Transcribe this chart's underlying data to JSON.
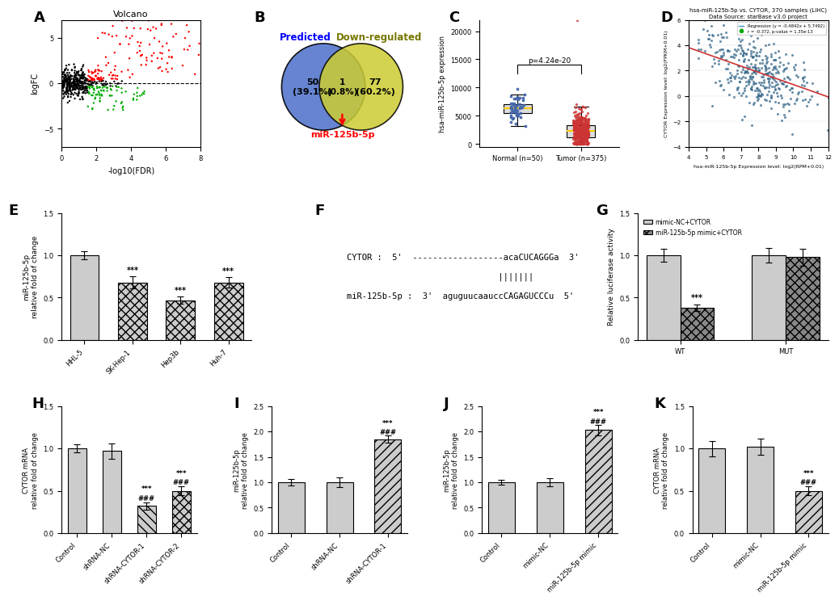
{
  "panel_A": {
    "title": "Volcano",
    "xlabel": "-log10(FDR)",
    "ylabel": "logFC",
    "xlim": [
      0,
      8
    ],
    "ylim": [
      -7,
      7
    ],
    "xticks": [
      0,
      2,
      4,
      6,
      8
    ],
    "yticks": [
      -5,
      0,
      5
    ]
  },
  "panel_B": {
    "left_label": "Predicted",
    "right_label": "Down-regulated",
    "left_only": "50\n(39.1%)",
    "intersection": "1\n(0.8%)",
    "right_only": "77\n(60.2%)",
    "arrow_label": "miR-125b-5p",
    "left_color": "#5577cc",
    "right_color": "#cccc33",
    "left_text_color": "#0000ff",
    "right_text_color": "#777700"
  },
  "panel_C": {
    "ylabel": "hsa-miR-125b-5p expression",
    "normal_label": "Normal (n=50)",
    "tumor_label": "Tumor (n=375)",
    "normal_color": "#4466aa",
    "tumor_color": "#cc3333"
  },
  "panel_D": {
    "title": "hsa-miR-125b-5p vs. CYTOR, 370 samples (LIHC)",
    "subtitle": "Data Source: starBase v3.0 project",
    "legend1": "Regression (y = -0.4842x + 5.7492)",
    "legend2": "r = -0.372, p-value = 1.35e-13",
    "xlabel": "hsa-miR-125b-5p Expression level: log2(RPM+0.01)",
    "ylabel": "CYTOR Expression level: log2(FPKM+0.01)",
    "xlim": [
      4,
      12
    ],
    "ylim": [
      -4,
      6
    ],
    "dot_color": "#336688",
    "line_color": "#cc3333",
    "legend_line_color": "#4499cc",
    "legend_dot_color": "#00aa00"
  },
  "panel_E": {
    "ylabel": "miR-125b-5p\nrelative fold of change",
    "categories": [
      "HHL-5",
      "SK-Hep-1",
      "Hep3b",
      "Huh-7"
    ],
    "values": [
      1.0,
      0.68,
      0.47,
      0.68
    ],
    "errors": [
      0.05,
      0.07,
      0.04,
      0.06
    ],
    "sig": [
      "",
      "***",
      "***",
      "***"
    ],
    "ylim": [
      0,
      1.5
    ],
    "yticks": [
      0.0,
      0.5,
      1.0,
      1.5
    ],
    "hatch_patterns": [
      "===",
      "xxx",
      "xxx",
      "xxx"
    ]
  },
  "panel_F": {
    "cytor_line": "CYTOR :  5'  ------------------acaCUCAGGGa  3'",
    "bars": "                              |||||||",
    "mir_line": "miR-125b-5p :  3'  aguguucaauccCAGAGUCCCu  5'"
  },
  "panel_G": {
    "ylabel": "Relative luciferase activity",
    "categories": [
      "WT",
      "MUT"
    ],
    "legend_labels": [
      "mimic-NC+CYTOR",
      "miR-125b-5p mimic+CYTOR"
    ],
    "values_nc": [
      1.0,
      1.0
    ],
    "values_mir": [
      0.38,
      0.98
    ],
    "errors_nc": [
      0.08,
      0.09
    ],
    "errors_mir": [
      0.04,
      0.1
    ],
    "sig_mir": [
      "***",
      ""
    ],
    "ylim": [
      0,
      1.5
    ],
    "yticks": [
      0.0,
      0.5,
      1.0,
      1.5
    ],
    "hatch_nc": "===",
    "hatch_mir": "xxx"
  },
  "panel_H": {
    "ylabel": "CYTOR mRNA\nrelative fold of change",
    "categories": [
      "Control",
      "shRNA-NC",
      "shRNA-CYTOR-1",
      "shRNA-CYTOR-2"
    ],
    "values": [
      1.0,
      0.97,
      0.32,
      0.5
    ],
    "errors": [
      0.05,
      0.09,
      0.04,
      0.05
    ],
    "sig_star": [
      "",
      "",
      "***",
      "***"
    ],
    "sig_hash": [
      "",
      "",
      "###",
      "###"
    ],
    "ylim": [
      0,
      1.5
    ],
    "yticks": [
      0.0,
      0.5,
      1.0,
      1.5
    ],
    "hatch_patterns": [
      "===",
      "===",
      "\\\\\\",
      "xxx"
    ]
  },
  "panel_I": {
    "ylabel": "miR-125b-5p\nrelative fold of change",
    "categories": [
      "Control",
      "shRNA-NC",
      "shRNA-CYTOR-1"
    ],
    "values": [
      1.0,
      1.0,
      1.85
    ],
    "errors": [
      0.06,
      0.09,
      0.07
    ],
    "sig_star": [
      "",
      "",
      "***"
    ],
    "sig_hash": [
      "",
      "",
      "###"
    ],
    "ylim": [
      0,
      2.5
    ],
    "yticks": [
      0.0,
      0.5,
      1.0,
      1.5,
      2.0,
      2.5
    ],
    "hatch_patterns": [
      "===",
      "===",
      "///"
    ]
  },
  "panel_J": {
    "ylabel": "miR-125b-5p\nrelative fold of change",
    "categories": [
      "Control",
      "mimic-NC",
      "miR-125b-5p mimic"
    ],
    "values": [
      1.0,
      1.0,
      2.03
    ],
    "errors": [
      0.05,
      0.08,
      0.1
    ],
    "sig_star": [
      "",
      "",
      "***"
    ],
    "sig_hash": [
      "",
      "",
      "###"
    ],
    "ylim": [
      0,
      2.5
    ],
    "yticks": [
      0.0,
      0.5,
      1.0,
      1.5,
      2.0,
      2.5
    ],
    "hatch_patterns": [
      "===",
      "===",
      "///"
    ]
  },
  "panel_K": {
    "ylabel": "CYTOR mRNA\nrelative fold of change",
    "categories": [
      "Control",
      "mimic-NC",
      "miR-125b-5p mimic"
    ],
    "values": [
      1.0,
      1.02,
      0.5
    ],
    "errors": [
      0.09,
      0.1,
      0.05
    ],
    "sig_star": [
      "",
      "",
      "***"
    ],
    "sig_hash": [
      "",
      "",
      "###"
    ],
    "ylim": [
      0,
      1.5
    ],
    "yticks": [
      0.0,
      0.5,
      1.0,
      1.5
    ],
    "hatch_patterns": [
      "===",
      "===",
      "///"
    ]
  },
  "panel_labels": [
    "A",
    "B",
    "C",
    "D",
    "E",
    "F",
    "G",
    "H",
    "I",
    "J",
    "K"
  ],
  "bg_color": "#ffffff"
}
